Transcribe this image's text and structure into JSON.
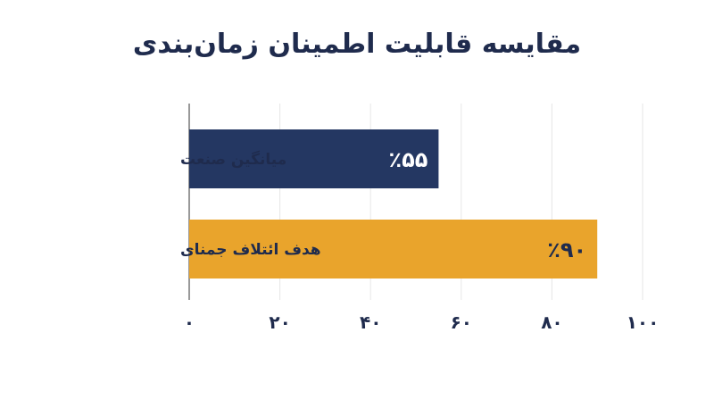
{
  "chart_data": {
    "type": "bar",
    "orientation": "horizontal",
    "title": "مقایسه قابلیت اطمینان زمان‌بندی",
    "categories": [
      "میانگین صنعت",
      "هدف ائتلاف جمنای"
    ],
    "values": [
      55,
      90
    ],
    "value_labels": [
      "٪۵۵",
      "٪۹۰"
    ],
    "xlim": [
      0,
      100
    ],
    "x_ticks": [
      0,
      20,
      40,
      60,
      80,
      100
    ],
    "x_tick_labels": [
      "۰",
      "۲۰",
      "۴۰",
      "۶۰",
      "۸۰",
      "۱۰۰"
    ],
    "grid": "vertical",
    "colors": {
      "bar_1": "#243762",
      "bar_2": "#e9a42c",
      "label_on_bar_1": "#ffffff",
      "label_on_bar_2": "#1f2b4d",
      "text": "#1f2b4d",
      "grid": "#e6e6e6",
      "axis": "#555555"
    }
  }
}
